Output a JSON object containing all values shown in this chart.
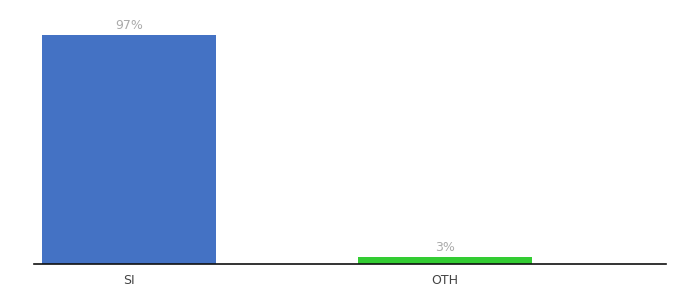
{
  "categories": [
    "SI",
    "OTH"
  ],
  "values": [
    97,
    3
  ],
  "bar_colors": [
    "#4472c4",
    "#33cc33"
  ],
  "value_labels": [
    "97%",
    "3%"
  ],
  "ylim": [
    0,
    108
  ],
  "background_color": "#ffffff",
  "label_color": "#aaaaaa",
  "label_fontsize": 9,
  "tick_fontsize": 9,
  "axis_line_color": "#111111",
  "bar_width": 0.55,
  "xlim": [
    -0.3,
    1.7
  ]
}
